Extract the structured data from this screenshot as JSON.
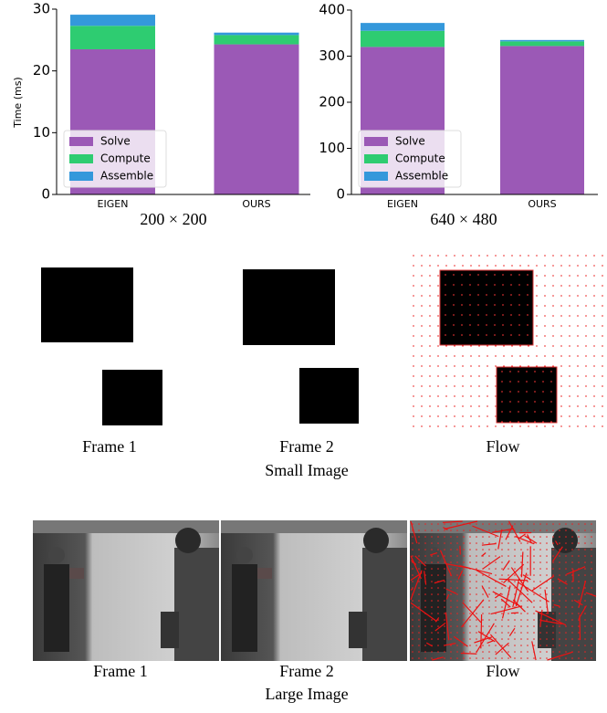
{
  "chart_data": [
    {
      "type": "bar",
      "stacked": true,
      "ylabel": "Time (ms)",
      "xlabel": "200 × 200",
      "categories": [
        "EIGEN",
        "OURS"
      ],
      "series": [
        {
          "name": "Solve",
          "color": "#9b59b6",
          "values": [
            23.5,
            24.3
          ]
        },
        {
          "name": "Compute",
          "color": "#2ecc71",
          "values": [
            3.8,
            1.5
          ]
        },
        {
          "name": "Assemble",
          "color": "#3498db",
          "values": [
            1.8,
            0.4
          ]
        }
      ],
      "ylim": [
        0,
        30
      ],
      "yticks": [
        0,
        10,
        20,
        30
      ],
      "legend": "lower left"
    },
    {
      "type": "bar",
      "stacked": true,
      "xlabel": "640 × 480",
      "categories": [
        "EIGEN",
        "OURS"
      ],
      "series": [
        {
          "name": "Solve",
          "color": "#9b59b6",
          "values": [
            320,
            322
          ]
        },
        {
          "name": "Compute",
          "color": "#2ecc71",
          "values": [
            35,
            10
          ]
        },
        {
          "name": "Assemble",
          "color": "#3498db",
          "values": [
            17,
            3
          ]
        }
      ],
      "ylim": [
        0,
        400
      ],
      "yticks": [
        0,
        100,
        200,
        300,
        400
      ],
      "legend": "lower left"
    }
  ],
  "small_image": {
    "labels": [
      "Frame 1",
      "Frame 2",
      "Flow"
    ],
    "caption": "Small Image"
  },
  "large_image": {
    "labels": [
      "Frame 1",
      "Frame 2",
      "Flow"
    ],
    "caption": "Large Image"
  }
}
